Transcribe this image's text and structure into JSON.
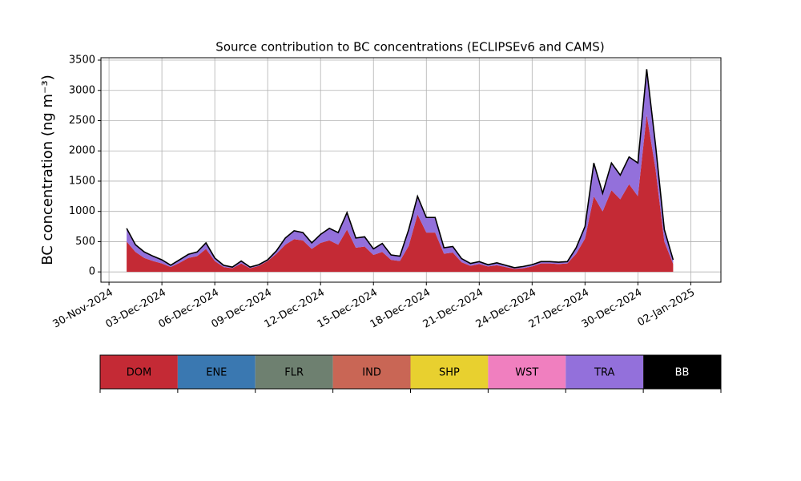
{
  "chart_data": {
    "type": "stacked_area",
    "title": "Source contribution to BC concentrations (ECLIPSEv6 and CAMS)",
    "y_label": "BC concentration (ng m⁻³)",
    "x": [
      "2024-12-01T00:00",
      "2024-12-01T12:00",
      "2024-12-02T00:00",
      "2024-12-02T12:00",
      "2024-12-03T00:00",
      "2024-12-03T12:00",
      "2024-12-04T00:00",
      "2024-12-04T12:00",
      "2024-12-05T00:00",
      "2024-12-05T12:00",
      "2024-12-06T00:00",
      "2024-12-06T12:00",
      "2024-12-07T00:00",
      "2024-12-07T12:00",
      "2024-12-08T00:00",
      "2024-12-08T12:00",
      "2024-12-09T00:00",
      "2024-12-09T12:00",
      "2024-12-10T00:00",
      "2024-12-10T12:00",
      "2024-12-11T00:00",
      "2024-12-11T12:00",
      "2024-12-12T00:00",
      "2024-12-12T12:00",
      "2024-12-13T00:00",
      "2024-12-13T12:00",
      "2024-12-14T00:00",
      "2024-12-14T12:00",
      "2024-12-15T00:00",
      "2024-12-15T12:00",
      "2024-12-16T00:00",
      "2024-12-16T12:00",
      "2024-12-17T00:00",
      "2024-12-17T12:00",
      "2024-12-18T00:00",
      "2024-12-18T12:00",
      "2024-12-19T00:00",
      "2024-12-19T12:00",
      "2024-12-20T00:00",
      "2024-12-20T12:00",
      "2024-12-21T00:00",
      "2024-12-21T12:00",
      "2024-12-22T00:00",
      "2024-12-22T12:00",
      "2024-12-23T00:00",
      "2024-12-23T12:00",
      "2024-12-24T00:00",
      "2024-12-24T12:00",
      "2024-12-25T00:00",
      "2024-12-25T12:00",
      "2024-12-26T00:00",
      "2024-12-26T12:00",
      "2024-12-27T00:00",
      "2024-12-27T12:00",
      "2024-12-28T00:00",
      "2024-12-28T12:00",
      "2024-12-29T00:00",
      "2024-12-29T12:00",
      "2024-12-30T00:00",
      "2024-12-30T12:00",
      "2024-12-31T00:00",
      "2024-12-31T12:00",
      "2025-01-01T00:00"
    ],
    "series": [
      {
        "name": "DOM",
        "color": "#c42a35",
        "values": [
          500,
          330,
          230,
          180,
          140,
          80,
          150,
          230,
          260,
          380,
          180,
          80,
          60,
          140,
          60,
          100,
          180,
          300,
          450,
          540,
          520,
          380,
          480,
          520,
          450,
          700,
          400,
          420,
          280,
          330,
          200,
          180,
          430,
          950,
          650,
          650,
          300,
          320,
          160,
          100,
          130,
          90,
          110,
          80,
          50,
          60,
          90,
          140,
          140,
          130,
          140,
          300,
          550,
          1250,
          1000,
          1350,
          1200,
          1450,
          1250,
          2600,
          1700,
          500,
          130
        ]
      },
      {
        "name": "TRA",
        "color": "#9370db",
        "values": [
          220,
          120,
          100,
          80,
          60,
          30,
          50,
          60,
          70,
          100,
          50,
          30,
          20,
          40,
          20,
          20,
          20,
          50,
          110,
          140,
          130,
          100,
          140,
          200,
          200,
          280,
          160,
          160,
          100,
          140,
          80,
          80,
          270,
          300,
          250,
          250,
          100,
          100,
          60,
          40,
          40,
          30,
          40,
          30,
          20,
          30,
          30,
          30,
          30,
          30,
          30,
          100,
          200,
          550,
          300,
          450,
          400,
          450,
          550,
          750,
          400,
          200,
          70
        ]
      }
    ],
    "legend_colorbar": [
      {
        "name": "DOM",
        "color": "#c42a35"
      },
      {
        "name": "ENE",
        "color": "#3a78b1"
      },
      {
        "name": "FLR",
        "color": "#6e8070"
      },
      {
        "name": "IND",
        "color": "#c96655"
      },
      {
        "name": "SHP",
        "color": "#e8d02f"
      },
      {
        "name": "WST",
        "color": "#f07fbf"
      },
      {
        "name": "TRA",
        "color": "#9370db"
      },
      {
        "name": "BB",
        "color": "#000000"
      }
    ],
    "xlim": [
      "2024-11-29T13:00",
      "2025-01-03T17:00"
    ],
    "xticks": [
      {
        "value": "2024-11-30T00:00",
        "label": "30-Nov-2024"
      },
      {
        "value": "2024-12-03T00:00",
        "label": "03-Dec-2024"
      },
      {
        "value": "2024-12-06T00:00",
        "label": "06-Dec-2024"
      },
      {
        "value": "2024-12-09T00:00",
        "label": "09-Dec-2024"
      },
      {
        "value": "2024-12-12T00:00",
        "label": "12-Dec-2024"
      },
      {
        "value": "2024-12-15T00:00",
        "label": "15-Dec-2024"
      },
      {
        "value": "2024-12-18T00:00",
        "label": "18-Dec-2024"
      },
      {
        "value": "2024-12-21T00:00",
        "label": "21-Dec-2024"
      },
      {
        "value": "2024-12-24T00:00",
        "label": "24-Dec-2024"
      },
      {
        "value": "2024-12-27T00:00",
        "label": "27-Dec-2024"
      },
      {
        "value": "2024-12-30T00:00",
        "label": "30-Dec-2024"
      },
      {
        "value": "2025-01-02T00:00",
        "label": "02-Jan-2025"
      }
    ],
    "ylim": [
      -170,
      3540
    ],
    "yticks": [
      0,
      500,
      1000,
      1500,
      2000,
      2500,
      3000,
      3500
    ],
    "grid": true
  }
}
